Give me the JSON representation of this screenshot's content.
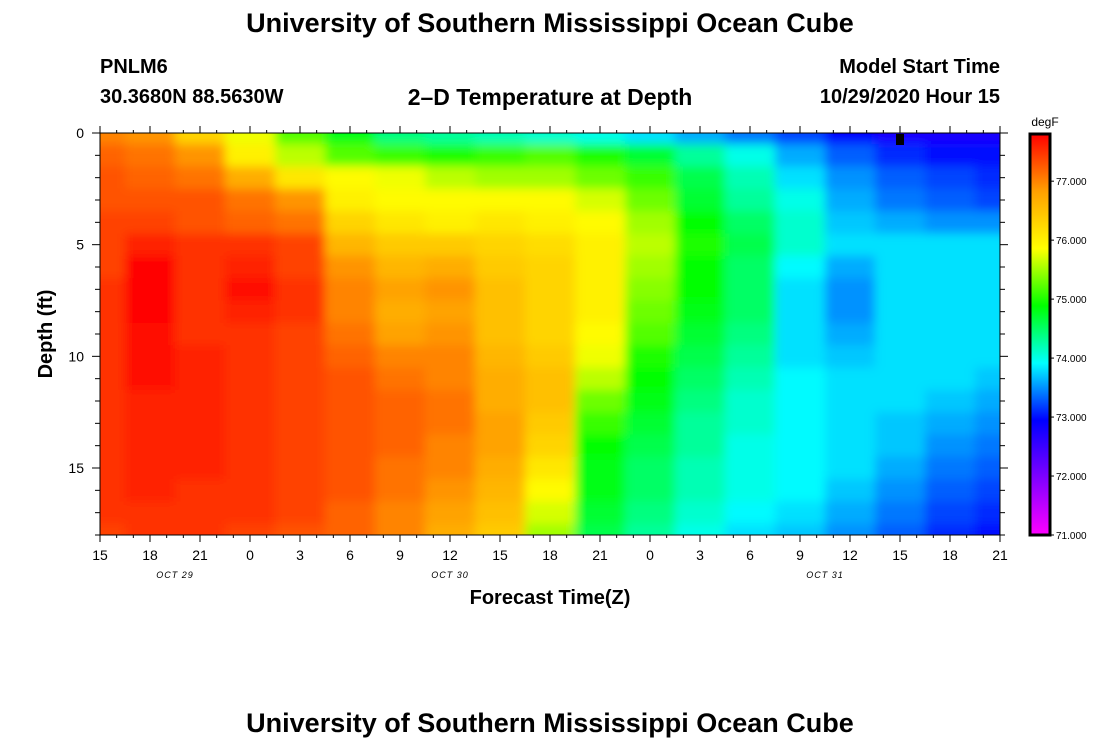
{
  "header": {
    "title": "University of Southern Mississippi Ocean Cube",
    "station": "PNLM6",
    "coords": "30.3680N 88.5630W",
    "plot_title": "2–D Temperature at Depth",
    "model_start_label": "Model Start Time",
    "model_start_value": "10/29/2020 Hour 15"
  },
  "footer": {
    "title": "University of Southern Mississippi Ocean Cube"
  },
  "colors": {
    "scale": [
      "#ff00ff",
      "#8000ff",
      "#0000ff",
      "#00ffff",
      "#00ff00",
      "#ffff00",
      "#ffa000",
      "#ff0000"
    ]
  },
  "chart_data": {
    "type": "heatmap",
    "xlabel": "Forecast Time(Z)",
    "ylabel": "Depth (ft)",
    "colorbar_unit": "degF",
    "colorbar_ticks": [
      "71.000",
      "72.000",
      "73.000",
      "74.000",
      "75.000",
      "76.000",
      "77.000"
    ],
    "colorbar_range": [
      71.0,
      77.8
    ],
    "x_tick_labels": [
      "15",
      "18",
      "21",
      "0",
      "3",
      "6",
      "9",
      "12",
      "15",
      "18",
      "21",
      "0",
      "3",
      "6",
      "9",
      "12",
      "15",
      "18",
      "21"
    ],
    "x_range_hours": [
      0,
      54
    ],
    "date_labels": [
      {
        "label": "OCT 29",
        "hour": 4.5
      },
      {
        "label": "OCT 30",
        "hour": 21
      },
      {
        "label": "OCT 31",
        "hour": 43.5
      }
    ],
    "y_ticks": [
      0,
      5,
      10,
      15
    ],
    "y_range": [
      0,
      18
    ],
    "current_time_marker_hour": 48,
    "temperature_columns_hours": [
      0,
      3,
      6,
      9,
      12,
      15,
      18,
      21,
      24,
      27,
      30,
      33,
      36,
      39,
      42,
      45,
      48,
      51,
      54
    ],
    "temperature_depths_ft": [
      0,
      1,
      2,
      3,
      4,
      5,
      6,
      7,
      8,
      9,
      10,
      11,
      12,
      13,
      14,
      15,
      16,
      17,
      18
    ],
    "temperature_rows_degF": [
      [
        77.0,
        76.9,
        76.3,
        75.8,
        75.2,
        74.8,
        74.4,
        74.3,
        74.2,
        74.1,
        74.0,
        73.8,
        73.6,
        73.4,
        73.2,
        72.9,
        72.8,
        72.8,
        72.8
      ],
      [
        77.2,
        77.1,
        76.9,
        76.0,
        75.6,
        75.2,
        75.1,
        75.0,
        75.1,
        75.2,
        75.0,
        74.7,
        74.3,
        74.0,
        73.6,
        73.3,
        73.1,
        73.0,
        73.0
      ],
      [
        77.3,
        77.2,
        77.1,
        76.7,
        76.1,
        75.9,
        75.8,
        75.6,
        75.5,
        75.5,
        75.3,
        75.1,
        74.6,
        74.2,
        73.8,
        73.5,
        73.3,
        73.2,
        73.1
      ],
      [
        77.3,
        77.3,
        77.3,
        77.1,
        76.9,
        76.0,
        75.9,
        75.9,
        75.9,
        75.9,
        75.7,
        75.3,
        74.7,
        74.3,
        74.0,
        73.6,
        73.4,
        73.3,
        73.2
      ],
      [
        77.4,
        77.4,
        77.3,
        77.2,
        77.1,
        76.3,
        76.1,
        76.0,
        76.1,
        76.0,
        75.9,
        75.5,
        74.9,
        74.5,
        74.1,
        73.7,
        73.6,
        73.5,
        73.5
      ],
      [
        77.4,
        77.6,
        77.5,
        77.5,
        77.4,
        76.6,
        76.4,
        76.4,
        76.3,
        76.2,
        76.0,
        75.6,
        75.0,
        74.6,
        74.1,
        73.8,
        73.8,
        73.8,
        73.8
      ],
      [
        77.4,
        77.8,
        77.5,
        77.6,
        77.4,
        76.9,
        76.6,
        76.7,
        76.4,
        76.3,
        76.0,
        75.5,
        74.9,
        74.5,
        73.9,
        73.6,
        73.8,
        73.8,
        73.8
      ],
      [
        77.5,
        77.8,
        77.5,
        77.7,
        77.5,
        77.0,
        76.8,
        76.9,
        76.5,
        76.3,
        76.0,
        75.4,
        74.9,
        74.5,
        73.8,
        73.5,
        73.8,
        73.8,
        73.8
      ],
      [
        77.5,
        77.8,
        77.5,
        77.6,
        77.5,
        77.0,
        76.7,
        76.8,
        76.5,
        76.3,
        76.0,
        75.3,
        74.8,
        74.5,
        73.8,
        73.5,
        73.8,
        73.8,
        73.8
      ],
      [
        77.5,
        77.7,
        77.5,
        77.5,
        77.4,
        77.1,
        76.8,
        76.9,
        76.5,
        76.3,
        75.9,
        75.2,
        74.7,
        74.4,
        73.8,
        73.6,
        73.8,
        73.8,
        73.8
      ],
      [
        77.5,
        77.7,
        77.6,
        77.5,
        77.4,
        77.2,
        77.0,
        77.0,
        76.6,
        76.4,
        75.8,
        75.0,
        74.6,
        74.3,
        73.8,
        73.7,
        73.8,
        73.8,
        73.8
      ],
      [
        77.5,
        77.7,
        77.6,
        77.5,
        77.4,
        77.3,
        77.1,
        77.0,
        76.7,
        76.5,
        75.6,
        74.9,
        74.5,
        74.2,
        73.9,
        73.8,
        73.8,
        73.8,
        73.7
      ],
      [
        77.5,
        77.6,
        77.6,
        77.5,
        77.4,
        77.3,
        77.2,
        77.1,
        76.7,
        76.5,
        75.3,
        74.8,
        74.4,
        74.1,
        73.9,
        73.8,
        73.8,
        73.7,
        73.6
      ],
      [
        77.5,
        77.6,
        77.6,
        77.5,
        77.4,
        77.3,
        77.2,
        77.1,
        76.8,
        76.4,
        75.1,
        74.7,
        74.3,
        74.1,
        73.9,
        73.8,
        73.7,
        73.6,
        73.5
      ],
      [
        77.5,
        77.6,
        77.6,
        77.5,
        77.4,
        77.3,
        77.2,
        77.0,
        76.8,
        76.3,
        74.9,
        74.6,
        74.3,
        74.0,
        73.9,
        73.8,
        73.7,
        73.5,
        73.4
      ],
      [
        77.5,
        77.6,
        77.6,
        77.5,
        77.4,
        77.3,
        77.1,
        77.0,
        76.7,
        76.1,
        74.8,
        74.5,
        74.2,
        74.0,
        73.9,
        73.8,
        73.6,
        73.4,
        73.3
      ],
      [
        77.5,
        77.6,
        77.5,
        77.5,
        77.4,
        77.3,
        77.1,
        76.9,
        76.6,
        75.9,
        74.8,
        74.5,
        74.2,
        74.0,
        73.9,
        73.7,
        73.5,
        73.3,
        73.2
      ],
      [
        77.5,
        77.5,
        77.5,
        77.5,
        77.4,
        77.2,
        77.0,
        76.8,
        76.5,
        75.7,
        74.7,
        74.4,
        74.1,
        73.9,
        73.8,
        73.6,
        73.4,
        73.2,
        73.1
      ],
      [
        77.4,
        77.5,
        77.5,
        77.4,
        77.3,
        77.2,
        77.0,
        76.7,
        76.4,
        75.5,
        74.6,
        74.3,
        74.0,
        73.8,
        73.7,
        73.5,
        73.3,
        73.1,
        73.0
      ]
    ]
  }
}
